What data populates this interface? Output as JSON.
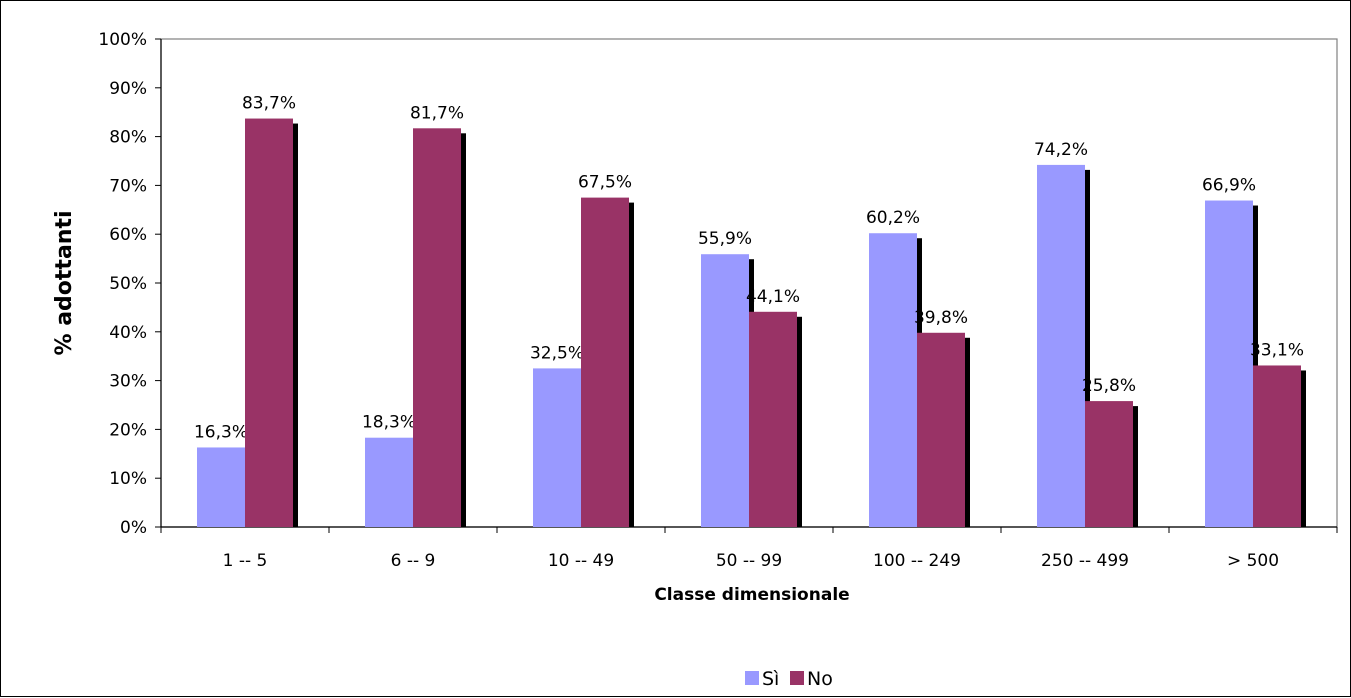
{
  "chart_data": {
    "type": "bar",
    "title": "",
    "xlabel": "Classe dimensionale",
    "ylabel": "% adottanti",
    "categories": [
      "1 -- 5",
      "6 -- 9",
      "10 -- 49",
      "50 -- 99",
      "100 -- 249",
      "250 -- 499",
      "> 500"
    ],
    "series": [
      {
        "name": "Sì",
        "color": "#9999ff",
        "values": [
          16.3,
          18.3,
          32.5,
          55.9,
          60.2,
          74.2,
          66.9
        ],
        "labels": [
          "16,3%",
          "18,3%",
          "32,5%",
          "55,9%",
          "60,2%",
          "74,2%",
          "66,9%"
        ]
      },
      {
        "name": "No",
        "color": "#993366",
        "values": [
          83.7,
          81.7,
          67.5,
          44.1,
          39.8,
          25.8,
          33.1
        ],
        "labels": [
          "83,7%",
          "81,7%",
          "67,5%",
          "44,1%",
          "39,8%",
          "25,8%",
          "33,1%"
        ]
      }
    ],
    "ylim": [
      0,
      100
    ],
    "yticks": [
      "0%",
      "10%",
      "20%",
      "30%",
      "40%",
      "50%",
      "60%",
      "70%",
      "80%",
      "90%",
      "100%"
    ],
    "grid": false,
    "legend_position": "bottom",
    "plot_background": "#ffffff"
  }
}
